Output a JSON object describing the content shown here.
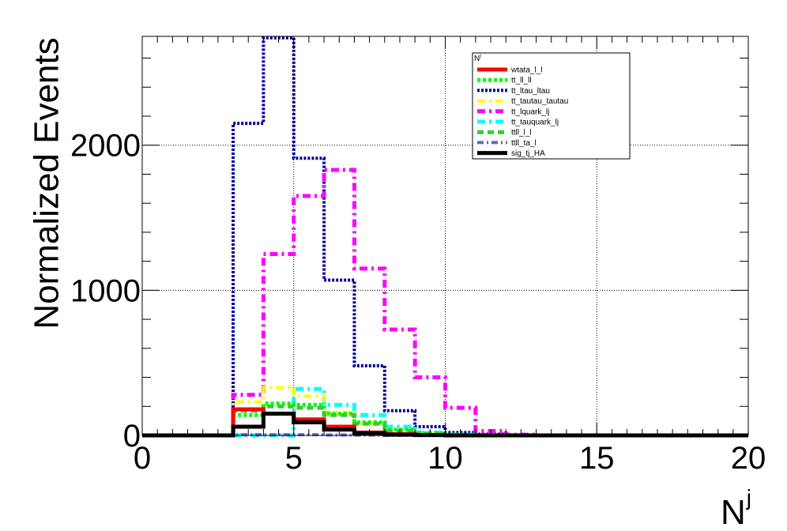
{
  "chart_data": {
    "type": "line",
    "style": "step-histogram",
    "xlabel": "N",
    "xlabel_superscript": "j",
    "ylabel": "Normalized Events",
    "xlim": [
      0,
      20
    ],
    "ylim": [
      0,
      2750
    ],
    "x_ticks": [
      0,
      5,
      10,
      15,
      20
    ],
    "y_ticks": [
      0,
      1000,
      2000
    ],
    "grid": true,
    "legend_placement": "top-right",
    "legend_header": "N",
    "legend_header_superscript": "j",
    "bin_edges": [
      0,
      1,
      2,
      3,
      4,
      5,
      6,
      7,
      8,
      9,
      10,
      11,
      12,
      13,
      14,
      15,
      16,
      17,
      18,
      19,
      20
    ],
    "series": [
      {
        "name": "tt_ltau_ltau",
        "color": "#000099",
        "dash": "3,2",
        "width": 4,
        "values": [
          0,
          0,
          0,
          2150,
          2740,
          1910,
          1070,
          480,
          170,
          60,
          20,
          8,
          3,
          0,
          0,
          0,
          0,
          0,
          0,
          0
        ]
      },
      {
        "name": "tt_lquark_lj",
        "color": "#ff00ff",
        "dash": "10,5,3,5",
        "width": 5,
        "values": [
          0,
          0,
          0,
          280,
          1250,
          1650,
          1830,
          1150,
          730,
          400,
          190,
          30,
          5,
          0,
          0,
          0,
          0,
          0,
          0,
          0
        ]
      },
      {
        "name": "tt_tauquark_lj",
        "color": "#00ffff",
        "dash": "10,5,3,5",
        "width": 5,
        "values": [
          0,
          0,
          0,
          0,
          0,
          320,
          210,
          140,
          60,
          20,
          5,
          0,
          0,
          0,
          0,
          0,
          0,
          0,
          0,
          0
        ]
      },
      {
        "name": "tt_tautau_tautau",
        "color": "#ffff00",
        "dash": "10,5,3,5",
        "width": 4,
        "values": [
          0,
          0,
          0,
          230,
          330,
          270,
          160,
          80,
          30,
          10,
          3,
          0,
          0,
          0,
          0,
          0,
          0,
          0,
          0,
          0
        ]
      },
      {
        "name": "tt_ll_ll",
        "color": "#00ff00",
        "dash": "4,3",
        "width": 5,
        "values": [
          0,
          0,
          0,
          140,
          220,
          210,
          150,
          90,
          40,
          15,
          5,
          0,
          0,
          0,
          0,
          0,
          0,
          0,
          0,
          0
        ]
      },
      {
        "name": "ttll_l_l",
        "color": "#33cc33",
        "dash": "8,5",
        "width": 5,
        "values": [
          0,
          0,
          0,
          170,
          200,
          190,
          140,
          80,
          30,
          10,
          0,
          0,
          0,
          0,
          0,
          0,
          0,
          0,
          0,
          0
        ]
      },
      {
        "name": "ttll_ta_l",
        "color": "#6666cc",
        "dash": "8,4,2,4",
        "width": 4,
        "values": [
          0,
          0,
          0,
          5,
          5,
          5,
          3,
          2,
          1,
          0,
          0,
          0,
          0,
          0,
          0,
          0,
          0,
          0,
          0,
          0
        ]
      },
      {
        "name": "wtata_l_l",
        "color": "#ff0000",
        "dash": "",
        "width": 5,
        "values": [
          0,
          0,
          0,
          180,
          150,
          110,
          60,
          20,
          8,
          3,
          0,
          0,
          0,
          0,
          0,
          0,
          0,
          0,
          0,
          0
        ]
      },
      {
        "name": "sig_tj_HA",
        "color": "#000000",
        "dash": "",
        "width": 5,
        "values": [
          0,
          0,
          0,
          60,
          150,
          90,
          40,
          15,
          5,
          2,
          0,
          0,
          0,
          0,
          0,
          0,
          0,
          0,
          0,
          0
        ]
      }
    ],
    "legend_order": [
      "wtata_l_l",
      "tt_ll_ll",
      "tt_ltau_ltau",
      "tt_tautau_tautau",
      "tt_lquark_lj",
      "tt_tauquark_lj",
      "ttll_l_l",
      "ttll_ta_l",
      "sig_tj_HA"
    ]
  }
}
